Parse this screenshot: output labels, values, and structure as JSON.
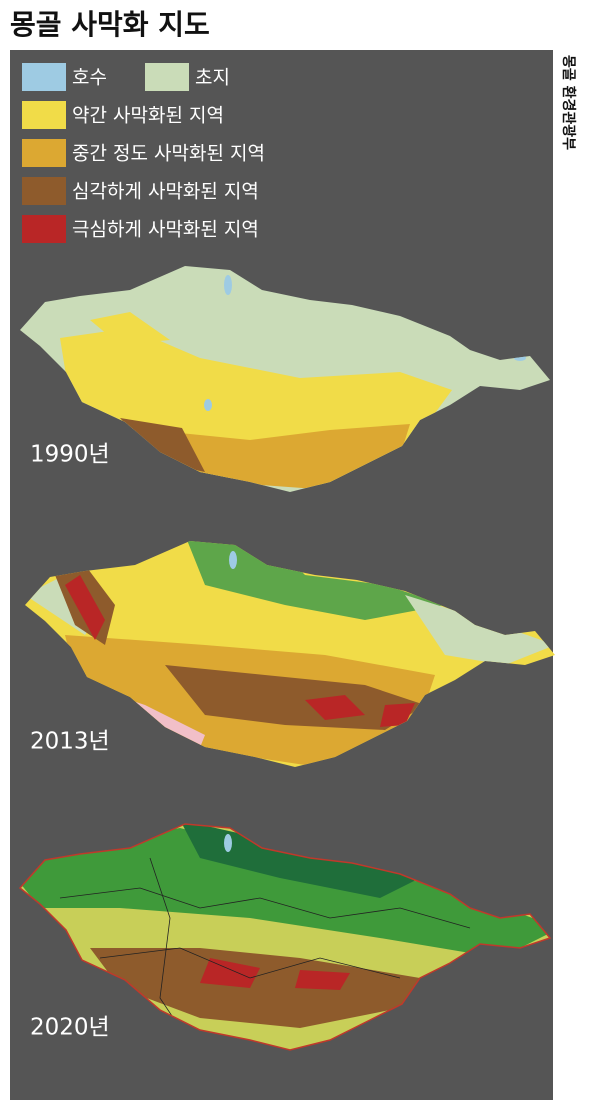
{
  "header": {
    "title": "몽골 사막화 지도"
  },
  "source": "몽골 환경관광부",
  "legend": [
    {
      "label": "호수",
      "color": "#9ecbe3"
    },
    {
      "label": "초지",
      "color": "#cadcb8"
    },
    {
      "label": "약간 사막화된 지역",
      "color": "#f1dc48"
    },
    {
      "label": "중간 정도 사막화된 지역",
      "color": "#dca832"
    },
    {
      "label": "심각하게 사막화된 지역",
      "color": "#8e5b2c"
    },
    {
      "label": "극심하게 사막화된 지역",
      "color": "#b92626"
    }
  ],
  "maps": [
    {
      "year_label": "1990년"
    },
    {
      "year_label": "2013년"
    },
    {
      "year_label": "2020년"
    }
  ]
}
